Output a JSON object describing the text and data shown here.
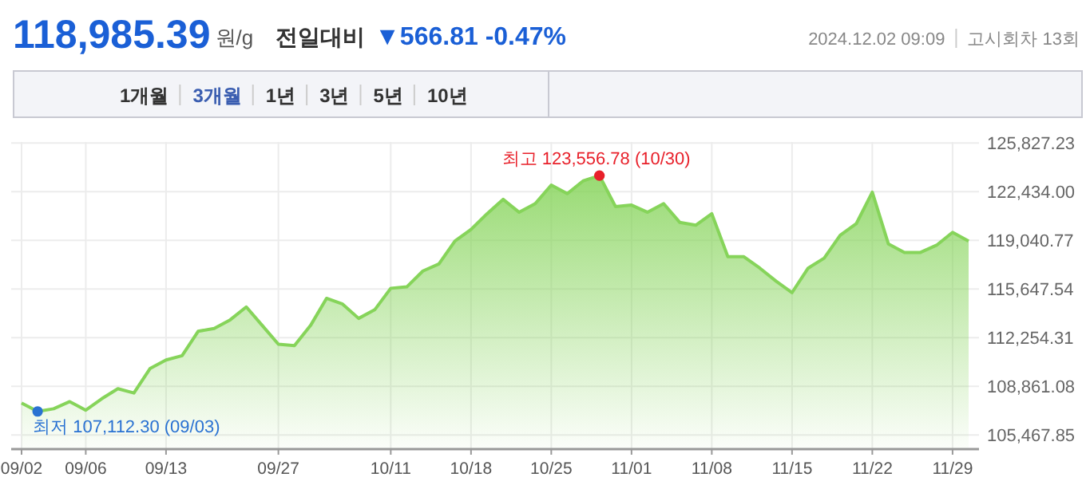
{
  "chart_data": {
    "type": "area",
    "title": "118,985.39",
    "subtitle": "원/g",
    "categories": [
      "09/02",
      null,
      null,
      null,
      "09/06",
      null,
      null,
      null,
      null,
      "09/13",
      null,
      null,
      null,
      null,
      null,
      null,
      "09/27",
      null,
      null,
      null,
      null,
      null,
      null,
      "10/11",
      null,
      null,
      null,
      null,
      "10/18",
      null,
      null,
      null,
      null,
      "10/25",
      null,
      null,
      null,
      null,
      "11/01",
      null,
      null,
      null,
      null,
      "11/08",
      null,
      null,
      null,
      null,
      "11/15",
      null,
      null,
      null,
      null,
      "11/22",
      null,
      null,
      null,
      null,
      "11/29",
      null
    ],
    "values": [
      107700,
      107112.3,
      107300,
      107800,
      107200,
      108000,
      108700,
      108400,
      110100,
      110700,
      111000,
      112700,
      112900,
      113500,
      114400,
      113100,
      111800,
      111700,
      113100,
      115000,
      114600,
      113600,
      114200,
      115700,
      115800,
      116900,
      117400,
      119000,
      119800,
      120900,
      121900,
      121000,
      121600,
      122900,
      122300,
      123200,
      123556.78,
      121400,
      121500,
      121000,
      121600,
      120300,
      120100,
      120900,
      117900,
      117900,
      117100,
      116200,
      115400,
      117100,
      117800,
      119400,
      120200,
      122400,
      118800,
      118200,
      118200,
      118700,
      119600,
      118985.39
    ],
    "color": "#86d45a",
    "ylim": [
      104540,
      125900
    ],
    "yticks": [
      {
        "value": 105467.85,
        "label": "105,467.85"
      },
      {
        "value": 108861.08,
        "label": "108,861.08"
      },
      {
        "value": 112254.31,
        "label": "112,254.31"
      },
      {
        "value": 115647.54,
        "label": "115,647.54"
      },
      {
        "value": 119040.77,
        "label": "119,040.77"
      },
      {
        "value": 122434.0,
        "label": "122,434.00"
      },
      {
        "value": 125827.23,
        "label": "125,827.23"
      }
    ],
    "grid": true,
    "annotations": [
      "전일대비",
      "▼566.81 -0.47%",
      "2024.12.02 09:09",
      "고시회차 13회",
      "1개월",
      "3개월",
      "1년",
      "3년",
      "5년",
      "10년",
      {
        "text": "최고 123,556.78 (10/30)",
        "y": 123556.78
      },
      "최저 107,112.30 (09/03)"
    ]
  }
}
